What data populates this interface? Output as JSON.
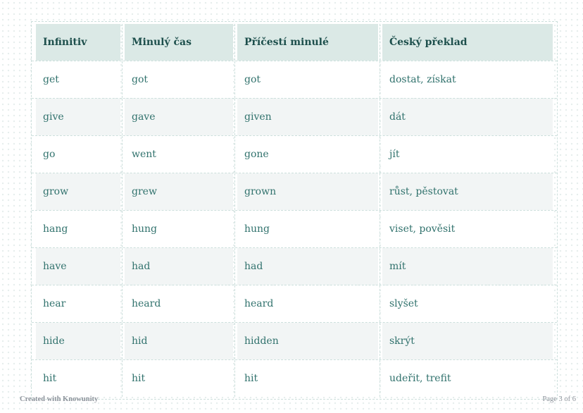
{
  "table": {
    "headers": [
      "Infinitiv",
      "Minulý čas",
      "Příčestí minulé",
      "Český překlad"
    ],
    "rows": [
      [
        "get",
        "got",
        "got",
        "dostat, získat"
      ],
      [
        "give",
        "gave",
        "given",
        "dát"
      ],
      [
        "go",
        "went",
        "gone",
        "jít"
      ],
      [
        "grow",
        "grew",
        "grown",
        "růst, pěstovat"
      ],
      [
        "hang",
        "hung",
        "hung",
        "viset, pověsit"
      ],
      [
        "have",
        "had",
        "had",
        "mít"
      ],
      [
        "hear",
        "heard",
        "heard",
        "slyšet"
      ],
      [
        "hide",
        "hid",
        "hidden",
        "skrýt"
      ],
      [
        "hit",
        "hit",
        "hit",
        "udeřit, trefit"
      ]
    ]
  },
  "footer": {
    "credit": "Created with Knowunity",
    "page_number": "Page 3 of 6"
  },
  "colors": {
    "header_bg": "#dbe9e6",
    "header_text": "#1d4f4c",
    "cell_text": "#31726d",
    "alt_row_bg": "#f2f5f5",
    "row_bg": "#ffffff",
    "border": "#ccdfdc",
    "footer_text": "#8e949c",
    "dot": "#e6edec"
  }
}
